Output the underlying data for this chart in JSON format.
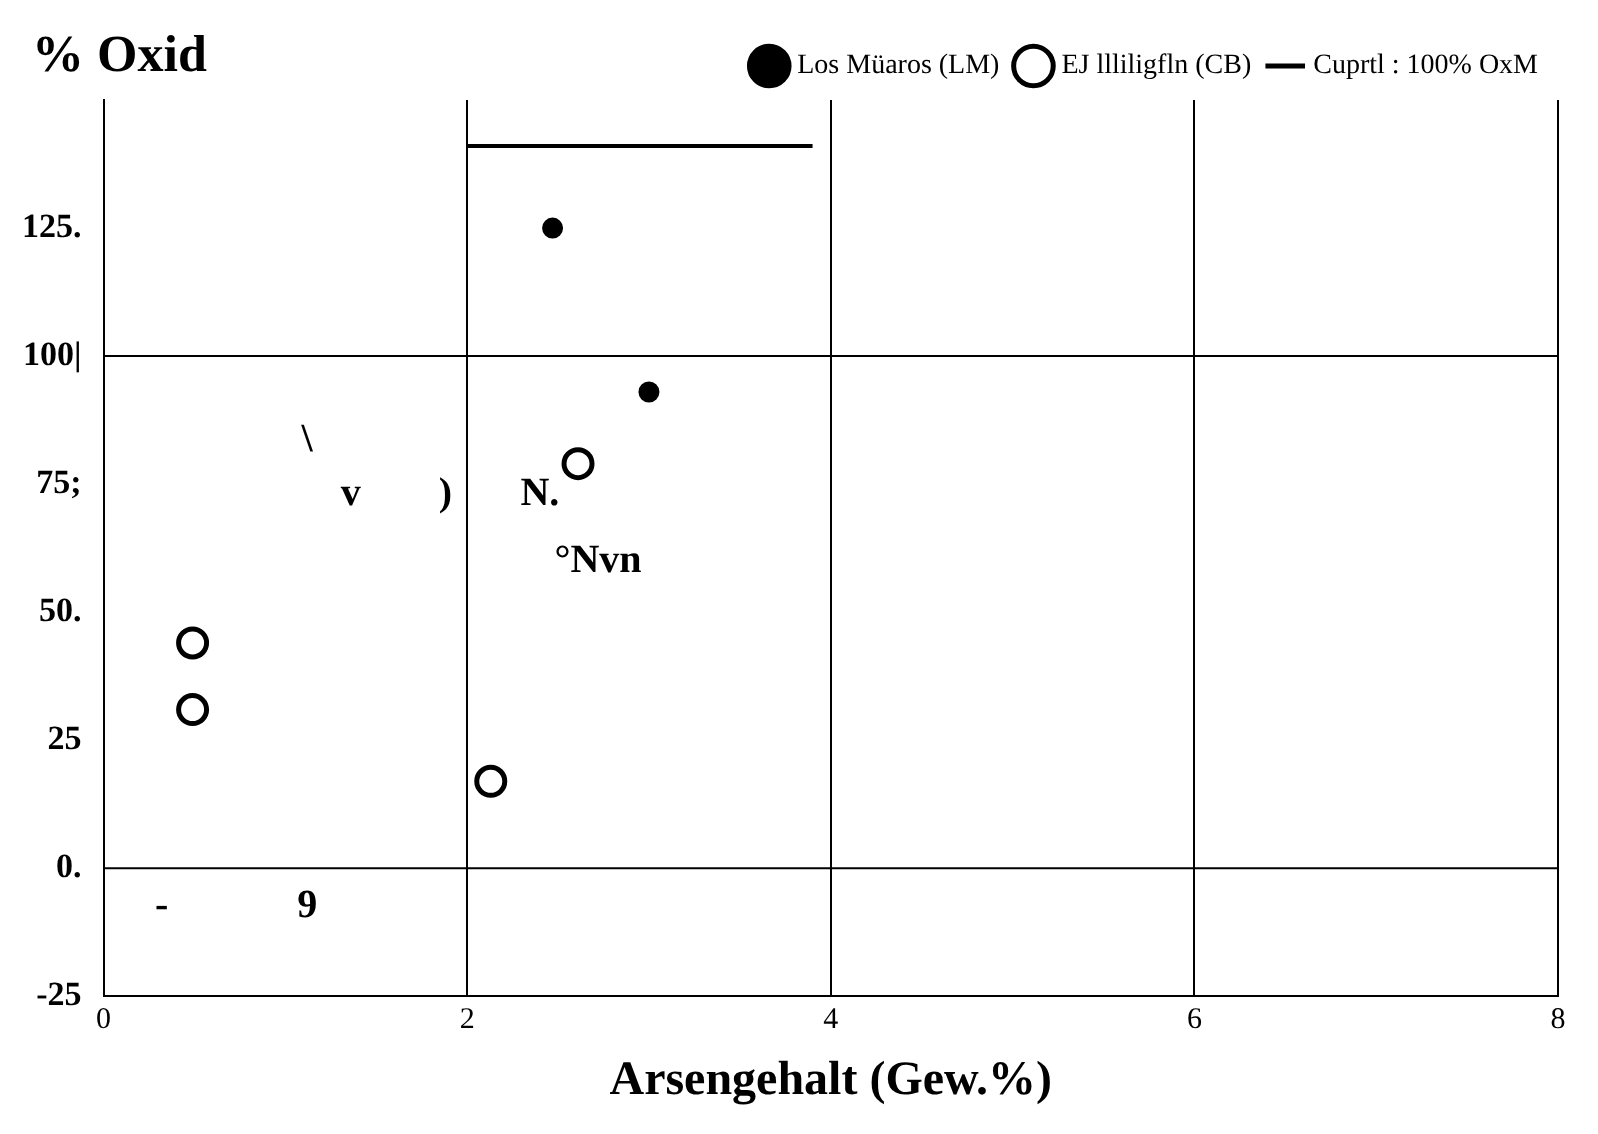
{
  "chart_data": {
    "type": "scatter",
    "ylabel": "% Oxid",
    "xlabel": "Arsengehalt (Gew.%)",
    "xlim": [
      0,
      8
    ],
    "xticks": [
      0,
      2,
      4,
      6,
      8
    ],
    "ylim": [
      -25,
      150
    ],
    "yticks": [
      {
        "value": -25,
        "label": "-25"
      },
      {
        "value": 0,
        "label": "0."
      },
      {
        "value": 25,
        "label": "25"
      },
      {
        "value": 50,
        "label": "50."
      },
      {
        "value": 75,
        "label": "75;"
      },
      {
        "value": 100,
        "label": "100|"
      },
      {
        "value": 125,
        "label": "125."
      }
    ],
    "grid": "x",
    "legend": "top right",
    "series": [
      {
        "name": "Los Müaros (LM)",
        "color": "#000000",
        "marker": "circle",
        "x": [
          2.47,
          3.0
        ],
        "values": [
          125,
          93
        ]
      },
      {
        "name": "EJ llliligfln (CB)",
        "color": "#000000",
        "marker": "circle",
        "x": [
          2.61,
          0.49,
          0.49,
          2.13
        ],
        "values": [
          79,
          44,
          31,
          17
        ]
      },
      {
        "name": "Cuprtl : 100% OxM",
        "type": "line",
        "color": "#000000",
        "marker": "none",
        "x": [
          2.0,
          3.9
        ],
        "values": [
          141,
          141
        ]
      }
    ],
    "ref_lines": [
      {
        "axis": "y",
        "value": 0
      },
      {
        "axis": "y",
        "value": 100
      }
    ],
    "annotations": [
      "\\",
      "v",
      ")",
      "N.",
      "°Nvn",
      "-",
      "9"
    ]
  }
}
